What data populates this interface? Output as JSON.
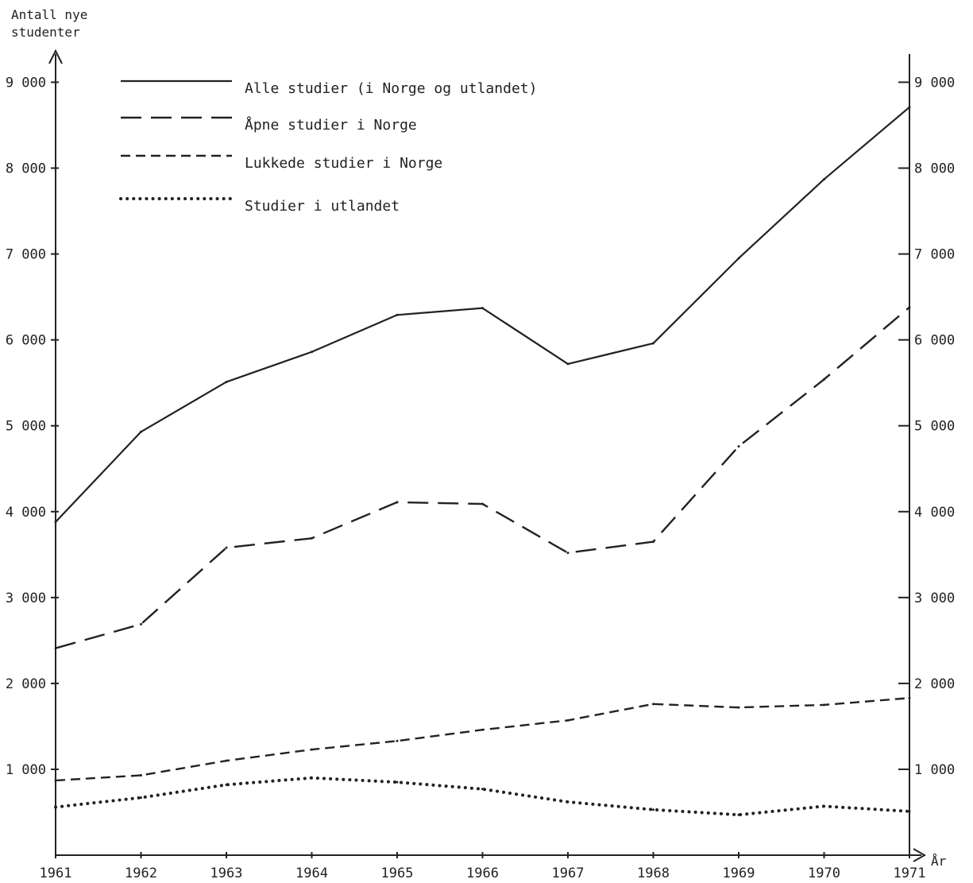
{
  "chart_data": {
    "type": "line",
    "ylabel": "Antall nye studenter",
    "xlabel": "År",
    "x": [
      1961,
      1962,
      1963,
      1964,
      1965,
      1966,
      1967,
      1968,
      1969,
      1970,
      1971
    ],
    "x_tick_labels": [
      "1961",
      "1962",
      "1963",
      "1964",
      "1965",
      "1966",
      "1967",
      "1968",
      "1969",
      "1970",
      "1971"
    ],
    "ylim": [
      0,
      9500
    ],
    "y_ticks": [
      1000,
      2000,
      3000,
      4000,
      5000,
      6000,
      7000,
      8000,
      9000
    ],
    "y_tick_labels": [
      "1 000",
      "2 000",
      "3 000",
      "4 000",
      "5 000",
      "6 000",
      "7 000",
      "8 000",
      "9 000"
    ],
    "grid": false,
    "legend_position": "top-left",
    "series": [
      {
        "name": "Alle studier (i Norge og utlandet)",
        "style": "solid",
        "values": [
          3880,
          4930,
          5510,
          5860,
          6290,
          6370,
          5720,
          5960,
          6950,
          7870,
          8710
        ]
      },
      {
        "name": "Åpne studier i Norge",
        "style": "long-dash",
        "values": [
          2410,
          2690,
          3580,
          3690,
          4110,
          4090,
          3520,
          3650,
          4760,
          5540,
          6380
        ]
      },
      {
        "name": "Lukkede studier i Norge",
        "style": "short-dash",
        "values": [
          870,
          930,
          1100,
          1230,
          1330,
          1460,
          1570,
          1760,
          1720,
          1750,
          1830
        ]
      },
      {
        "name": "Studier i utlandet",
        "style": "dotted",
        "values": [
          560,
          670,
          820,
          900,
          850,
          770,
          620,
          530,
          470,
          570,
          510
        ]
      }
    ],
    "line_color": "#222222"
  }
}
